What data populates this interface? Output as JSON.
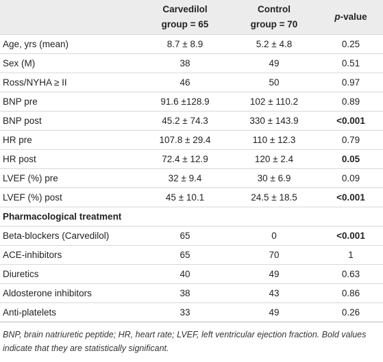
{
  "table": {
    "columns": [
      "Carvedilol\ngroup = 65",
      "Control\ngroup = 70"
    ],
    "p_header": [
      "p",
      "-value"
    ],
    "rows": [
      {
        "cells": [
          "Age, yrs (mean)",
          "8.7 ± 8.9",
          "5.2 ± 4.8",
          "0.25"
        ]
      },
      {
        "cells": [
          "Sex (M)",
          "38",
          "49",
          "0.51"
        ]
      },
      {
        "cells": [
          "Ross/NYHA ≥ II",
          "46",
          "50",
          "0.97"
        ]
      },
      {
        "cells": [
          "BNP pre",
          "91.6 ±128.9",
          "102 ± 110.2",
          "0.89"
        ]
      },
      {
        "cells": [
          "BNP post",
          "45.2 ± 74.3",
          "330 ± 143.9",
          "<0.001"
        ],
        "significant": true
      },
      {
        "cells": [
          "HR pre",
          "107.8 ± 29.4",
          "110 ± 12.3",
          "0.79"
        ]
      },
      {
        "cells": [
          "HR post",
          "72.4 ± 12.9",
          "120 ± 2.4",
          "0.05"
        ],
        "significant": true
      },
      {
        "cells": [
          "LVEF (%) pre",
          "32 ± 9.4",
          "30 ± 6.9",
          "0.09"
        ]
      },
      {
        "cells": [
          "LVEF (%) post",
          "45 ± 10.1",
          "24.5 ± 18.5",
          "<0.001"
        ],
        "significant": true
      }
    ],
    "section": "Pharmacological treatment",
    "treatment_rows": [
      {
        "cells": [
          "Beta-blockers (Carvedilol)",
          "65",
          "0",
          "<0.001"
        ],
        "significant": true
      },
      {
        "cells": [
          "ACE-inhibitors",
          "65",
          "70",
          "1"
        ]
      },
      {
        "cells": [
          "Diuretics",
          "40",
          "49",
          "0.63"
        ]
      },
      {
        "cells": [
          "Aldosterone inhibitors",
          "38",
          "43",
          "0.86"
        ]
      },
      {
        "cells": [
          "Anti-platelets",
          "33",
          "49",
          "0.26"
        ]
      }
    ],
    "footnote": "BNP, brain natriuretic peptide; HR, heart rate; LVEF, left ventricular ejection fraction. Bold values indicate that they are statistically significant."
  }
}
